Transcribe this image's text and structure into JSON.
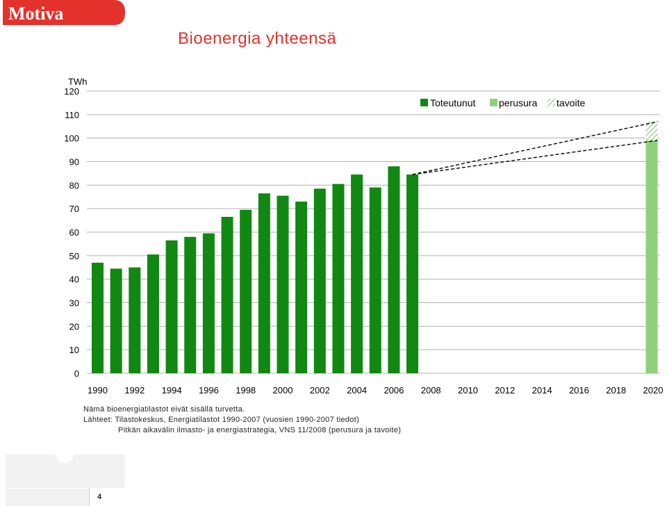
{
  "logo": {
    "text": "Motiva",
    "color": "#e4312b"
  },
  "title": "Bioenergia yhteensä",
  "notes": {
    "note": "Nämä bioenergiatilastot eivät sisällä turvetta.",
    "sources_line1": "Lähteet: Tilastokeskus, Energiatilastot 1990-2007 (vuosien 1990-2007 tiedot)",
    "sources_line2": "Pitkän aikavälin ilmasto- ja energiastrategia, VNS 11/2008 (perusura ja tavoite)"
  },
  "page_number": "4",
  "chart_data": {
    "type": "bar",
    "ylabel": "TWh",
    "ylim": [
      0,
      120
    ],
    "yticks": [
      0,
      10,
      20,
      30,
      40,
      50,
      60,
      70,
      80,
      90,
      100,
      110,
      120
    ],
    "xlim": [
      1990,
      2020
    ],
    "xticks": [
      1990,
      1992,
      1994,
      1996,
      1998,
      2000,
      2002,
      2004,
      2006,
      2008,
      2010,
      2012,
      2014,
      2016,
      2018,
      2020
    ],
    "grid": true,
    "legend_position": "top-right",
    "colors": {
      "actual": "#118811",
      "baseline": "#8ed17a",
      "target_hatch": "#7dbf6a",
      "line": "#000000"
    },
    "series": [
      {
        "name": "Toteutunut",
        "x": [
          1990,
          1991,
          1992,
          1993,
          1994,
          1995,
          1996,
          1997,
          1998,
          1999,
          2000,
          2001,
          2002,
          2003,
          2004,
          2005,
          2006,
          2007
        ],
        "values": [
          47,
          44.5,
          45,
          50.5,
          56.5,
          58,
          59.5,
          66.5,
          69.5,
          76.5,
          75.5,
          73,
          78.5,
          80.5,
          84.5,
          79,
          88,
          84.5
        ]
      },
      {
        "name": "perusura",
        "x": [
          2020
        ],
        "values": [
          99
        ]
      },
      {
        "name": "tavoite",
        "x": [
          2020
        ],
        "values": [
          107
        ]
      }
    ],
    "projection_lines": [
      {
        "from": [
          2007,
          84.5
        ],
        "to": [
          2020,
          99
        ]
      },
      {
        "from": [
          2007,
          84.5
        ],
        "to": [
          2020,
          107
        ]
      }
    ]
  }
}
